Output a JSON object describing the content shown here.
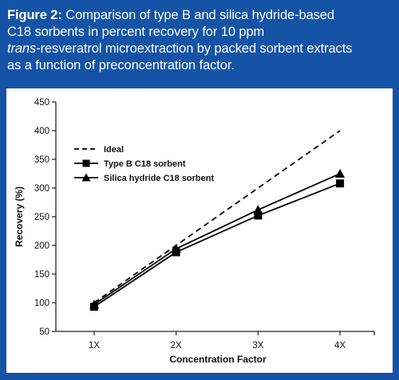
{
  "caption": {
    "label": "Figure 2:",
    "line1": " Comparison of type B and silica hydride-based",
    "line2": "C18 sorbents in percent recovery for 10 ppm",
    "line3_italic": "trans",
    "line3_rest": "-resveratrol microextraction by packed sorbent extracts",
    "line4": "as a function of preconcentration factor."
  },
  "colors": {
    "frame": "#1553a6",
    "series": "#000000"
  },
  "chart_data": {
    "type": "line",
    "categories": [
      "1X",
      "2X",
      "3X",
      "4X"
    ],
    "xlabel": "Concentration Factor",
    "ylabel": "Recovery (%)",
    "ylim": [
      50,
      450
    ],
    "yticks": [
      50,
      100,
      150,
      200,
      250,
      300,
      350,
      400,
      450
    ],
    "grid": false,
    "legend_position": "top-left",
    "series": [
      {
        "name": "Ideal",
        "values": [
          100,
          200,
          300,
          400
        ],
        "style": "dashed",
        "marker": "none"
      },
      {
        "name": "Type B C18 sorbent",
        "values": [
          93,
          188,
          252,
          308
        ],
        "style": "solid",
        "marker": "square"
      },
      {
        "name": "Silica hydride C18 sorbent",
        "values": [
          97,
          194,
          262,
          325
        ],
        "style": "solid",
        "marker": "triangle"
      }
    ]
  }
}
